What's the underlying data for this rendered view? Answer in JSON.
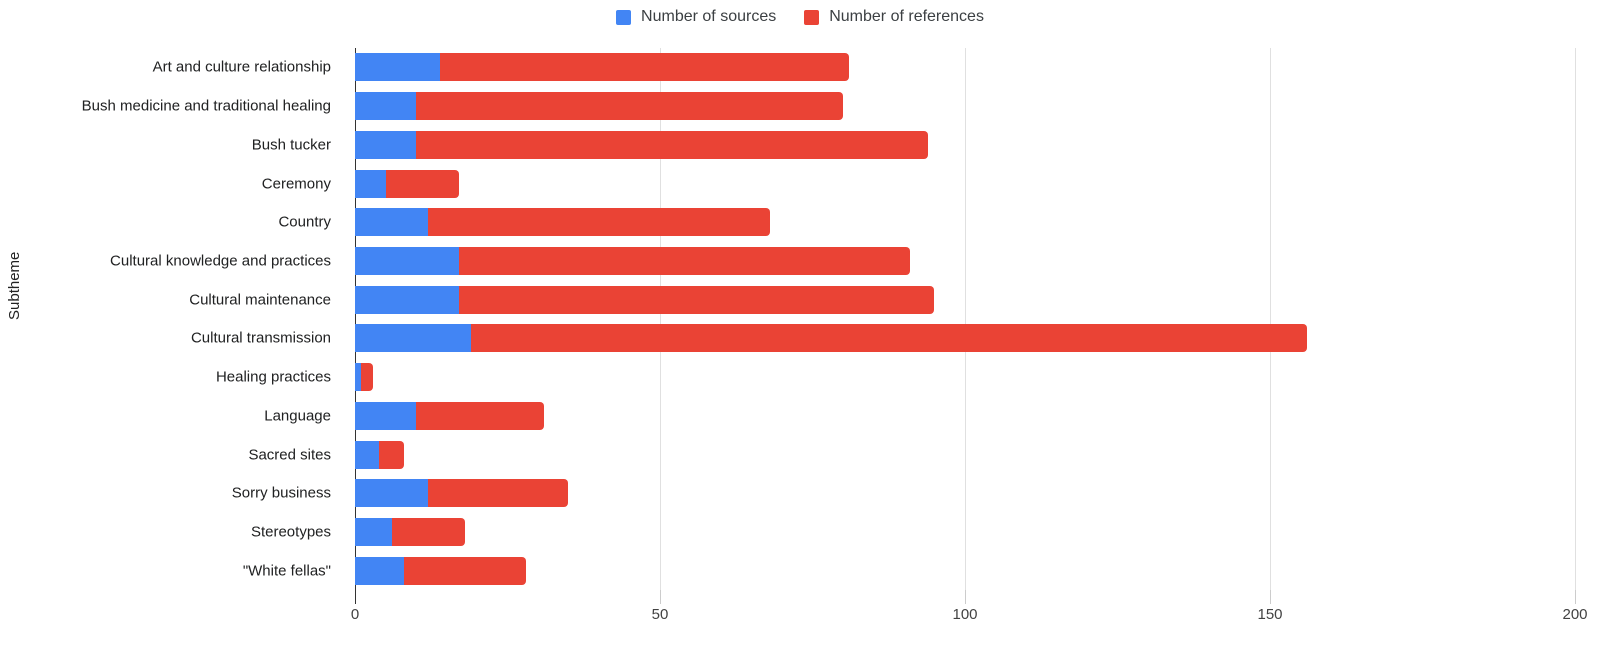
{
  "legend": {
    "sources_label": "Number of sources",
    "references_label": "Number of references"
  },
  "axes": {
    "y_title": "Subtheme"
  },
  "chart_data": {
    "type": "bar",
    "orientation": "horizontal",
    "stacked": true,
    "title": "",
    "xlabel": "",
    "ylabel": "Subtheme",
    "xlim": [
      0,
      200
    ],
    "xticks": [
      0,
      50,
      100,
      150,
      200
    ],
    "grid": "vertical",
    "legend_position": "top-center",
    "categories": [
      "Art and culture relationship",
      "Bush medicine and traditional healing",
      "Bush tucker",
      "Ceremony",
      "Country",
      "Cultural knowledge and practices",
      "Cultural maintenance",
      "Cultural transmission",
      "Healing practices",
      "Language",
      "Sacred sites",
      "Sorry business",
      "Stereotypes",
      "\"White fellas\""
    ],
    "series": [
      {
        "name": "Number of sources",
        "color": "#4285F4",
        "values": [
          14,
          10,
          10,
          5,
          12,
          17,
          17,
          19,
          1,
          10,
          4,
          12,
          6,
          8
        ]
      },
      {
        "name": "Number of references",
        "color": "#EA4335",
        "values": [
          67,
          70,
          84,
          12,
          56,
          74,
          78,
          137,
          2,
          21,
          4,
          23,
          12,
          20
        ]
      }
    ],
    "colors": {
      "gridline": "#e0e0e0",
      "axis_line": "#333333",
      "tick_label": "#424242",
      "category_label": "#202122",
      "legend_text": "#3c4043",
      "background": "#ffffff"
    }
  }
}
